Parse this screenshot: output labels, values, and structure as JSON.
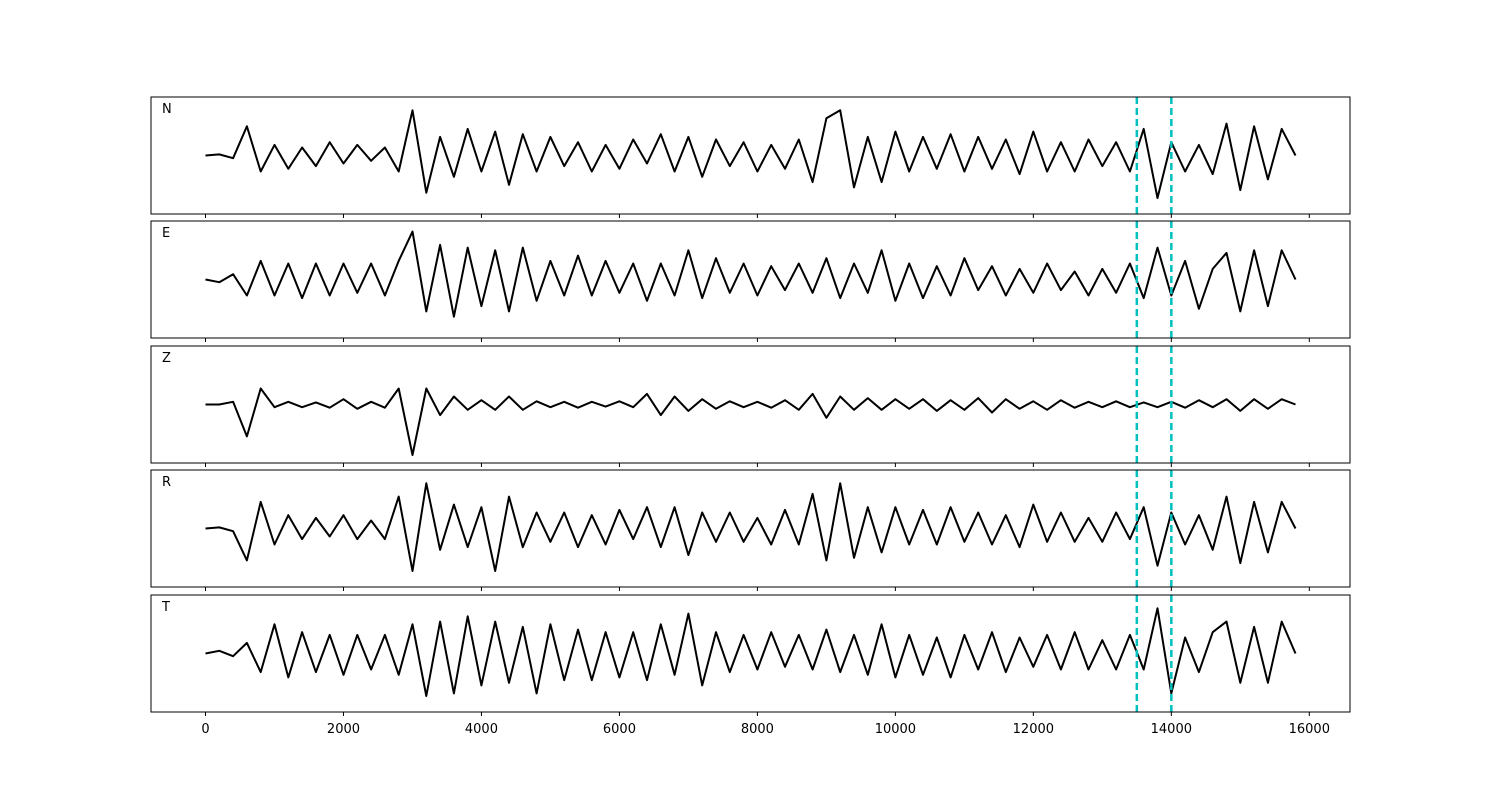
{
  "chart_data": {
    "type": "line",
    "title": "",
    "xlabel": "",
    "ylabel": "",
    "xlim": [
      -790,
      16590
    ],
    "ylim": [
      -1.1,
      1.1
    ],
    "x_ticks": [
      0,
      2000,
      4000,
      6000,
      8000,
      10000,
      12000,
      14000,
      16000
    ],
    "x_tick_labels": [
      "0",
      "2000",
      "4000",
      "6000",
      "8000",
      "10000",
      "12000",
      "14000",
      "16000"
    ],
    "grid": false,
    "x_start": 0,
    "sample_interval": 200,
    "line_color": "#000000",
    "markers": {
      "color": "#00bfbf",
      "style": "dashed",
      "x": [
        13500,
        14000
      ]
    },
    "series": [
      {
        "name": "N",
        "values": [
          0,
          0.02,
          -0.05,
          0.55,
          -0.3,
          0.2,
          -0.25,
          0.15,
          -0.2,
          0.25,
          -0.15,
          0.2,
          -0.1,
          0.15,
          -0.3,
          0.85,
          -0.7,
          0.35,
          -0.4,
          0.5,
          -0.3,
          0.45,
          -0.55,
          0.4,
          -0.3,
          0.35,
          -0.2,
          0.25,
          -0.3,
          0.2,
          -0.25,
          0.3,
          -0.15,
          0.4,
          -0.3,
          0.35,
          -0.4,
          0.3,
          -0.2,
          0.25,
          -0.3,
          0.2,
          -0.25,
          0.3,
          -0.5,
          0.7,
          0.85,
          -0.6,
          0.35,
          -0.5,
          0.45,
          -0.3,
          0.35,
          -0.25,
          0.4,
          -0.3,
          0.35,
          -0.25,
          0.3,
          -0.35,
          0.45,
          -0.3,
          0.25,
          -0.3,
          0.3,
          -0.2,
          0.25,
          -0.3,
          0.5,
          -0.8,
          0.25,
          -0.3,
          0.2,
          -0.35,
          0.6,
          -0.65,
          0.55,
          -0.45,
          0.5,
          0.0
        ]
      },
      {
        "name": "E",
        "values": [
          0,
          -0.05,
          0.1,
          -0.3,
          0.35,
          -0.3,
          0.3,
          -0.35,
          0.3,
          -0.3,
          0.3,
          -0.25,
          0.3,
          -0.3,
          0.35,
          0.9,
          -0.6,
          0.65,
          -0.7,
          0.6,
          -0.5,
          0.55,
          -0.6,
          0.6,
          -0.4,
          0.35,
          -0.3,
          0.45,
          -0.3,
          0.35,
          -0.25,
          0.3,
          -0.4,
          0.3,
          -0.3,
          0.55,
          -0.35,
          0.4,
          -0.25,
          0.3,
          -0.3,
          0.25,
          -0.2,
          0.3,
          -0.25,
          0.4,
          -0.35,
          0.3,
          -0.25,
          0.55,
          -0.4,
          0.3,
          -0.35,
          0.25,
          -0.3,
          0.4,
          -0.2,
          0.25,
          -0.3,
          0.2,
          -0.25,
          0.3,
          -0.2,
          0.15,
          -0.3,
          0.2,
          -0.25,
          0.3,
          -0.35,
          0.6,
          -0.3,
          0.35,
          -0.55,
          0.2,
          0.5,
          -0.6,
          0.55,
          -0.5,
          0.55,
          0.0
        ]
      },
      {
        "name": "Z",
        "values": [
          0,
          0.0,
          0.05,
          -0.6,
          0.3,
          -0.05,
          0.05,
          -0.05,
          0.04,
          -0.06,
          0.1,
          -0.08,
          0.05,
          -0.06,
          0.3,
          -0.95,
          0.3,
          -0.2,
          0.15,
          -0.1,
          0.08,
          -0.1,
          0.15,
          -0.1,
          0.06,
          -0.05,
          0.05,
          -0.06,
          0.05,
          -0.04,
          0.06,
          -0.05,
          0.2,
          -0.2,
          0.15,
          -0.12,
          0.1,
          -0.08,
          0.06,
          -0.05,
          0.05,
          -0.06,
          0.08,
          -0.1,
          0.2,
          -0.25,
          0.15,
          -0.1,
          0.12,
          -0.1,
          0.1,
          -0.08,
          0.1,
          -0.12,
          0.08,
          -0.1,
          0.12,
          -0.15,
          0.1,
          -0.08,
          0.06,
          -0.1,
          0.08,
          -0.06,
          0.05,
          -0.05,
          0.06,
          -0.05,
          0.04,
          -0.05,
          0.05,
          -0.06,
          0.08,
          -0.05,
          0.1,
          -0.12,
          0.1,
          -0.08,
          0.1,
          0.0
        ]
      },
      {
        "name": "R",
        "values": [
          0,
          0.02,
          -0.05,
          -0.6,
          0.5,
          -0.3,
          0.25,
          -0.2,
          0.2,
          -0.15,
          0.25,
          -0.2,
          0.15,
          -0.2,
          0.6,
          -0.8,
          0.85,
          -0.4,
          0.45,
          -0.35,
          0.4,
          -0.8,
          0.6,
          -0.35,
          0.3,
          -0.25,
          0.3,
          -0.35,
          0.25,
          -0.3,
          0.35,
          -0.2,
          0.4,
          -0.35,
          0.4,
          -0.5,
          0.3,
          -0.25,
          0.3,
          -0.25,
          0.2,
          -0.3,
          0.35,
          -0.3,
          0.65,
          -0.6,
          0.85,
          -0.55,
          0.4,
          -0.45,
          0.4,
          -0.3,
          0.35,
          -0.3,
          0.4,
          -0.25,
          0.3,
          -0.3,
          0.25,
          -0.35,
          0.45,
          -0.25,
          0.3,
          -0.25,
          0.2,
          -0.25,
          0.3,
          -0.2,
          0.4,
          -0.7,
          0.3,
          -0.3,
          0.25,
          -0.4,
          0.6,
          -0.65,
          0.5,
          -0.45,
          0.5,
          0.0
        ]
      },
      {
        "name": "T",
        "values": [
          0,
          0.05,
          -0.05,
          0.2,
          -0.35,
          0.55,
          -0.45,
          0.4,
          -0.35,
          0.35,
          -0.4,
          0.35,
          -0.3,
          0.35,
          -0.4,
          0.55,
          -0.8,
          0.6,
          -0.75,
          0.7,
          -0.6,
          0.6,
          -0.55,
          0.5,
          -0.75,
          0.55,
          -0.5,
          0.45,
          -0.5,
          0.4,
          -0.45,
          0.4,
          -0.5,
          0.55,
          -0.4,
          0.75,
          -0.6,
          0.4,
          -0.35,
          0.35,
          -0.3,
          0.4,
          -0.25,
          0.35,
          -0.3,
          0.45,
          -0.35,
          0.35,
          -0.4,
          0.55,
          -0.45,
          0.35,
          -0.4,
          0.3,
          -0.45,
          0.35,
          -0.3,
          0.4,
          -0.35,
          0.3,
          -0.25,
          0.35,
          -0.3,
          0.4,
          -0.3,
          0.25,
          -0.3,
          0.35,
          -0.3,
          0.85,
          -0.75,
          0.3,
          -0.35,
          0.4,
          0.6,
          -0.55,
          0.5,
          -0.55,
          0.6,
          0.0
        ]
      }
    ]
  }
}
